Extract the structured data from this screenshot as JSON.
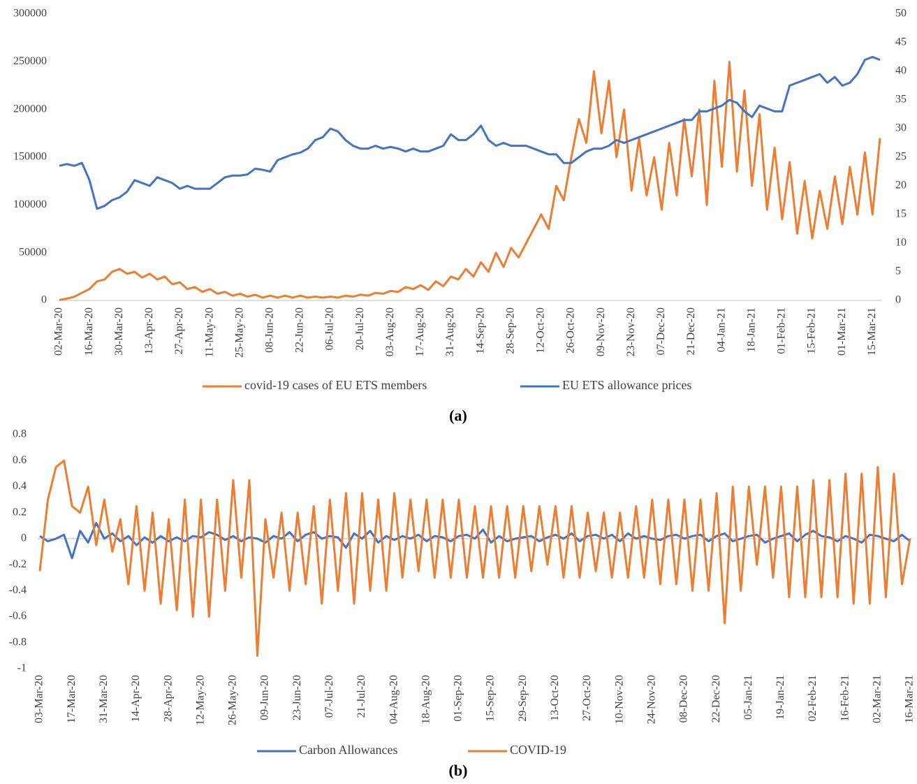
{
  "chart_data": [
    {
      "type": "line",
      "title": "(a)",
      "categories": [
        "02-Mar-20",
        null,
        null,
        null,
        "16-Mar-20",
        null,
        null,
        null,
        "30-Mar-20",
        null,
        null,
        null,
        "13-Apr-20",
        null,
        null,
        null,
        "27-Apr-20",
        null,
        null,
        null,
        "11-May-20",
        null,
        null,
        null,
        "25-May-20",
        null,
        null,
        null,
        "08-Jun-20",
        null,
        null,
        null,
        "22-Jun-20",
        null,
        null,
        null,
        "06-Jul-20",
        null,
        null,
        null,
        "20-Jul-20",
        null,
        null,
        null,
        "03-Aug-20",
        null,
        null,
        null,
        "17-Aug-20",
        null,
        null,
        null,
        "31-Aug-20",
        null,
        null,
        null,
        "14-Sep-20",
        null,
        null,
        null,
        "28-Sep-20",
        null,
        null,
        null,
        "12-Oct-20",
        null,
        null,
        null,
        "26-Oct-20",
        null,
        null,
        null,
        "09-Nov-20",
        null,
        null,
        null,
        "23-Nov-20",
        null,
        null,
        null,
        "07-Dec-20",
        null,
        null,
        null,
        "21-Dec-20",
        null,
        null,
        null,
        "04-Jan-21",
        null,
        null,
        null,
        "18-Jan-21",
        null,
        null,
        null,
        "01-Feb-21",
        null,
        null,
        null,
        "15-Feb-21",
        null,
        null,
        null,
        "01-Mar-21",
        null,
        null,
        null,
        "15-Mar-21",
        null
      ],
      "series": [
        {
          "name": "covid-19 cases of EU ETS members",
          "color": "#ed7d31",
          "values": [
            500,
            2000,
            4000,
            8000,
            12000,
            20000,
            22000,
            30000,
            33000,
            28000,
            30000,
            24000,
            28000,
            22000,
            25000,
            17000,
            19000,
            12000,
            14000,
            9000,
            12000,
            7000,
            9000,
            5000,
            7000,
            4000,
            6000,
            3000,
            5000,
            3000,
            5000,
            3000,
            5000,
            3000,
            4000,
            3000,
            4000,
            3000,
            5000,
            4000,
            6000,
            5000,
            8000,
            7000,
            10000,
            9000,
            14000,
            12000,
            16000,
            11000,
            20000,
            15000,
            25000,
            22000,
            33000,
            25000,
            40000,
            30000,
            50000,
            35000,
            55000,
            45000,
            60000,
            75000,
            90000,
            75000,
            120000,
            105000,
            150000,
            190000,
            165000,
            240000,
            175000,
            230000,
            150000,
            200000,
            115000,
            170000,
            110000,
            150000,
            95000,
            165000,
            110000,
            190000,
            130000,
            200000,
            100000,
            230000,
            140000,
            250000,
            135000,
            220000,
            120000,
            195000,
            95000,
            160000,
            85000,
            145000,
            70000,
            125000,
            65000,
            115000,
            75000,
            130000,
            80000,
            140000,
            90000,
            155000,
            90000,
            170000
          ]
        },
        {
          "name": "EU ETS allowance prices",
          "color": "#4472c4",
          "axis": "y2",
          "values": [
            23.5,
            23.8,
            23.5,
            24,
            21,
            16,
            16.5,
            17.5,
            18,
            19,
            21,
            20.5,
            20,
            21.5,
            21,
            20.5,
            19.5,
            20,
            19.5,
            19.5,
            19.5,
            20.5,
            21.5,
            21.8,
            21.8,
            22,
            23,
            22.8,
            22.5,
            24.5,
            25,
            25.5,
            25.8,
            26.5,
            28,
            28.5,
            30,
            29.5,
            28,
            27,
            26.5,
            26.5,
            27,
            26.5,
            26.8,
            26.5,
            26,
            26.5,
            26,
            26,
            26.5,
            27,
            29,
            28,
            28,
            29,
            30.5,
            28,
            27,
            27.5,
            27,
            27,
            27,
            26.5,
            26,
            25.5,
            25.5,
            24,
            24,
            25,
            26,
            26.5,
            26.5,
            27,
            28,
            27.5,
            28,
            28.5,
            29,
            29.5,
            30,
            30.5,
            31,
            31.5,
            31.5,
            33,
            33,
            33.5,
            34,
            35,
            34.5,
            33,
            32,
            34,
            33.5,
            33,
            33,
            37.5,
            38,
            38.5,
            39,
            39.5,
            38,
            39,
            37.5,
            38,
            39.5,
            42,
            42.5,
            42
          ]
        }
      ],
      "ylim": [
        0,
        300000
      ],
      "yticks": [
        0,
        50000,
        100000,
        150000,
        200000,
        250000,
        300000
      ],
      "y2lim": [
        0,
        50
      ],
      "y2ticks": [
        0,
        5,
        10,
        15,
        20,
        25,
        30,
        35,
        40,
        45,
        50
      ]
    },
    {
      "type": "line",
      "title": "(b)",
      "categories": [
        "03-Mar-20",
        null,
        null,
        null,
        "17-Mar-20",
        null,
        null,
        null,
        "31-Mar-20",
        null,
        null,
        null,
        "14-Apr-20",
        null,
        null,
        null,
        "28-Apr-20",
        null,
        null,
        null,
        "12-May-20",
        null,
        null,
        null,
        "26-May-20",
        null,
        null,
        null,
        "09-Jun-20",
        null,
        null,
        null,
        "23-Jun-20",
        null,
        null,
        null,
        "07-Jul-20",
        null,
        null,
        null,
        "21-Jul-20",
        null,
        null,
        null,
        "04-Aug-20",
        null,
        null,
        null,
        "18-Aug-20",
        null,
        null,
        null,
        "01-Sep-20",
        null,
        null,
        null,
        "15-Sep-20",
        null,
        null,
        null,
        "29-Sep-20",
        null,
        null,
        null,
        "13-Oct-20",
        null,
        null,
        null,
        "27-Oct-20",
        null,
        null,
        null,
        "10-Nov-20",
        null,
        null,
        null,
        "24-Nov-20",
        null,
        null,
        null,
        "08-Dec-20",
        null,
        null,
        null,
        "22-Dec-20",
        null,
        null,
        null,
        "05-Jan-21",
        null,
        null,
        null,
        "19-Jan-21",
        null,
        null,
        null,
        "02-Feb-21",
        null,
        null,
        null,
        "16-Feb-21",
        null,
        null,
        null,
        "02-Mar-21",
        null,
        null,
        null,
        "16-Mar-21"
      ],
      "series": [
        {
          "name": "Carbon Allowances",
          "color": "#4472c4",
          "values": [
            0.02,
            -0.02,
            0.0,
            0.03,
            -0.15,
            0.06,
            -0.03,
            0.12,
            0.0,
            0.04,
            -0.02,
            0.02,
            -0.05,
            0.01,
            -0.03,
            0.02,
            -0.02,
            0.01,
            -0.02,
            0.02,
            0.01,
            0.05,
            0.03,
            -0.01,
            0.02,
            -0.02,
            0.01,
            0.0,
            -0.03,
            0.02,
            0.0,
            0.05,
            -0.02,
            0.03,
            0.05,
            0.0,
            0.02,
            0.01,
            -0.07,
            0.04,
            0.0,
            0.06,
            -0.03,
            0.02,
            -0.01,
            0.02,
            0.0,
            0.03,
            -0.02,
            0.02,
            0.01,
            -0.02,
            0.02,
            0.03,
            0.0,
            0.07,
            -0.03,
            0.02,
            -0.02,
            0.0,
            0.01,
            0.02,
            -0.02,
            0.01,
            0.03,
            0.0,
            0.04,
            -0.02,
            0.02,
            0.03,
            0.0,
            0.03,
            -0.02,
            0.04,
            0.0,
            0.02,
            0.0,
            -0.01,
            0.02,
            0.03,
            0.0,
            0.02,
            0.03,
            -0.02,
            0.02,
            0.04,
            -0.02,
            0.0,
            0.02,
            0.03,
            -0.03,
            0.0,
            0.02,
            0.04,
            -0.02,
            0.03,
            0.06,
            0.02,
            0.01,
            -0.02,
            0.02,
            0.0,
            -0.03,
            0.03,
            0.02,
            0.0,
            -0.02,
            0.03,
            -0.02
          ]
        },
        {
          "name": "COVID-19",
          "color": "#ed7d31",
          "values": [
            -0.25,
            0.3,
            0.55,
            0.6,
            0.25,
            0.2,
            0.4,
            -0.05,
            0.3,
            -0.1,
            0.15,
            -0.35,
            0.25,
            -0.4,
            0.2,
            -0.5,
            0.15,
            -0.55,
            0.3,
            -0.6,
            0.3,
            -0.6,
            0.3,
            -0.4,
            0.45,
            -0.3,
            0.45,
            -0.9,
            0.15,
            -0.3,
            0.2,
            -0.4,
            0.2,
            -0.35,
            0.25,
            -0.5,
            0.3,
            -0.4,
            0.35,
            -0.5,
            0.35,
            -0.4,
            0.3,
            -0.4,
            0.35,
            -0.3,
            0.3,
            -0.25,
            0.3,
            -0.3,
            0.3,
            -0.3,
            0.3,
            -0.3,
            0.25,
            -0.3,
            0.25,
            -0.3,
            0.25,
            -0.3,
            0.25,
            -0.25,
            0.25,
            -0.2,
            0.25,
            -0.3,
            0.25,
            -0.3,
            0.2,
            -0.25,
            0.2,
            -0.3,
            0.2,
            -0.3,
            0.25,
            -0.3,
            0.3,
            -0.35,
            0.3,
            -0.35,
            0.3,
            -0.4,
            0.3,
            -0.4,
            0.35,
            -0.65,
            0.4,
            -0.4,
            0.4,
            -0.2,
            0.4,
            -0.3,
            0.4,
            -0.45,
            0.4,
            -0.45,
            0.45,
            -0.45,
            0.45,
            -0.45,
            0.5,
            -0.5,
            0.5,
            -0.5,
            0.55,
            -0.45,
            0.5,
            -0.35,
            0
          ]
        }
      ],
      "ylim": [
        -1,
        0.8
      ],
      "yticks": [
        -1,
        -0.8,
        -0.6,
        -0.4,
        -0.2,
        0,
        0.2,
        0.4,
        0.6,
        0.8
      ]
    }
  ]
}
